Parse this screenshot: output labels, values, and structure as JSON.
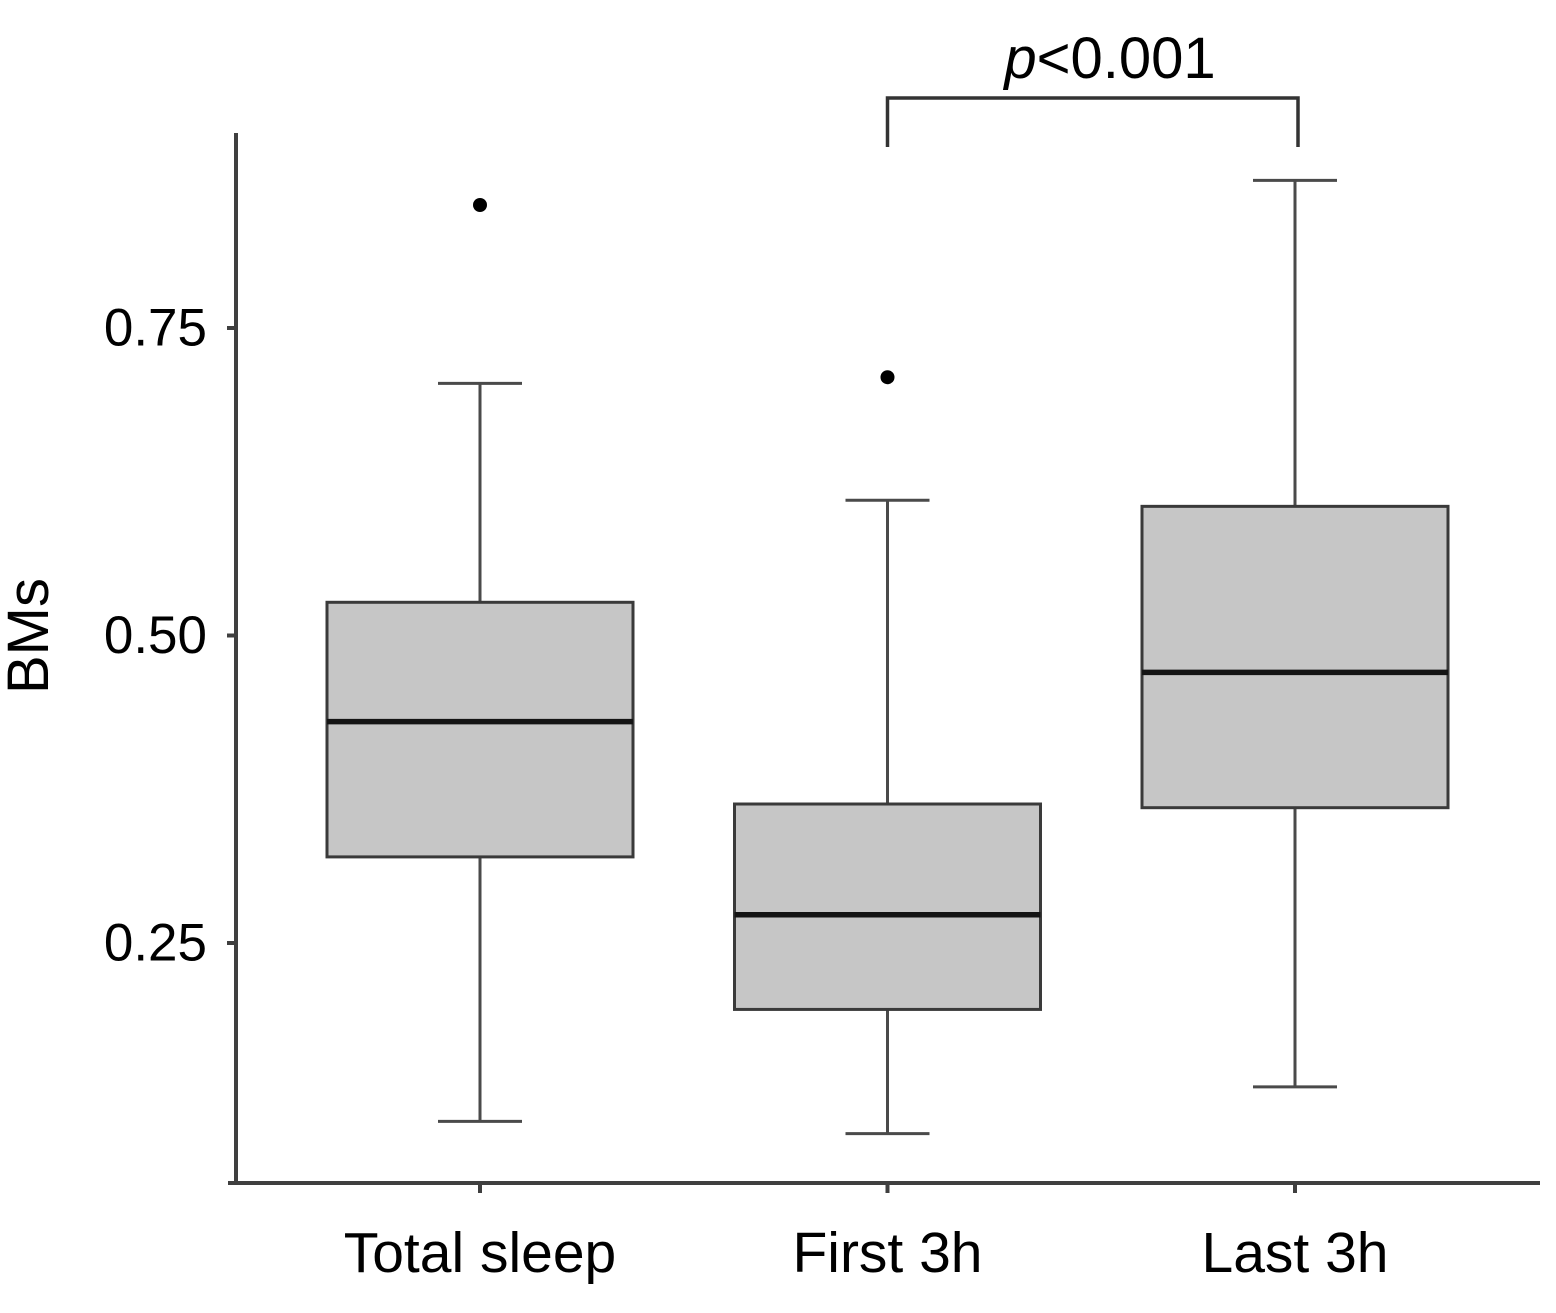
{
  "chart_data": {
    "type": "boxplot",
    "title": "",
    "ylabel": "BMs",
    "xlabel": "",
    "categories": [
      "Total sleep",
      "First 3h",
      "Last 3h"
    ],
    "yticks": [
      {
        "value": 0.25,
        "label": "0.25"
      },
      {
        "value": 0.5,
        "label": "0.50"
      },
      {
        "value": 0.75,
        "label": "0.75"
      }
    ],
    "ylim": [
      0.055,
      0.91
    ],
    "grid": false,
    "legend": "none",
    "series": [
      {
        "name": "Total sleep",
        "min": 0.105,
        "q1": 0.32,
        "median": 0.43,
        "q3": 0.527,
        "max": 0.705,
        "outliers": [
          0.85
        ]
      },
      {
        "name": "First 3h",
        "min": 0.095,
        "q1": 0.196,
        "median": 0.273,
        "q3": 0.363,
        "max": 0.61,
        "outliers": [
          0.71
        ]
      },
      {
        "name": "Last 3h",
        "min": 0.133,
        "q1": 0.36,
        "median": 0.47,
        "q3": 0.605,
        "max": 0.87,
        "outliers": []
      }
    ],
    "annotation": {
      "p_symbol": "p",
      "p_rest": "<0.001",
      "full_text": "p<0.001",
      "between": [
        "First 3h",
        "Last 3h"
      ]
    },
    "colors": {
      "background": "#ffffff",
      "box_fill": "#c6c6c6",
      "box_border": "#3a3a3a",
      "median": "#141414",
      "whisker": "#4a4a4a",
      "axis": "#3f3f3f",
      "bracket": "#333333",
      "outlier": "#000000",
      "text": "#000000"
    }
  }
}
